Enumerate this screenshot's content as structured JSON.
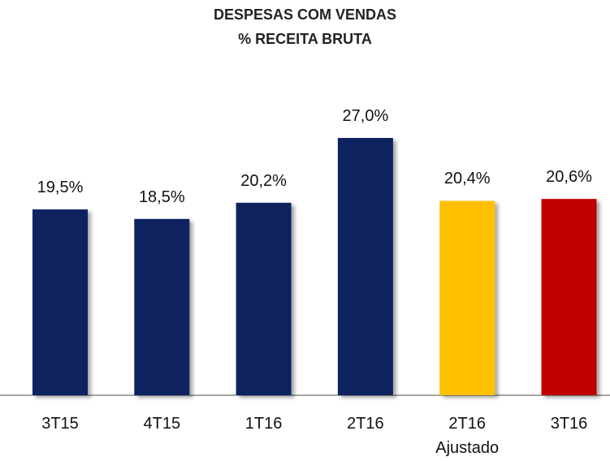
{
  "chart_data": {
    "type": "bar",
    "title": "DESPESAS COM VENDAS",
    "subtitle": "% RECEITA BRUTA",
    "categories": [
      "3T15",
      "4T15",
      "1T16",
      "2T16",
      "2T16\nAjustado",
      "3T16"
    ],
    "values": [
      19.5,
      18.5,
      20.2,
      27.0,
      20.4,
      20.6
    ],
    "value_labels": [
      "19,5%",
      "18,5%",
      "20,2%",
      "27,0%",
      "20,4%",
      "20,6%"
    ],
    "colors": [
      "#0b215e",
      "#0b215e",
      "#0b215e",
      "#0b215e",
      "#ffc000",
      "#c00000"
    ]
  }
}
